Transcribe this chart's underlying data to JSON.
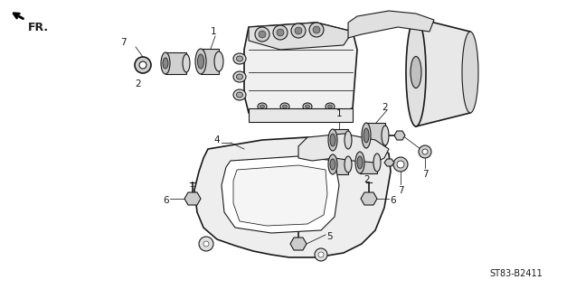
{
  "background_color": "#ffffff",
  "diagram_code": "ST83-B2411",
  "fr_label": "FR.",
  "line_color": "#1a1a1a",
  "text_color": "#1a1a1a",
  "label_fontsize": 7.5,
  "code_fontsize": 7,
  "figsize": [
    6.37,
    3.2
  ],
  "dpi": 100
}
